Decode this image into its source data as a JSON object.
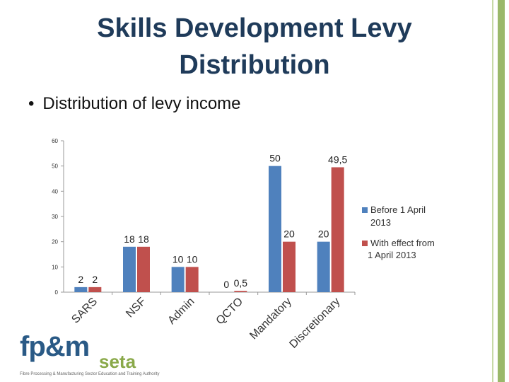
{
  "title": {
    "line1": "Skills Development Levy",
    "line2": "Distribution"
  },
  "bullet": "Distribution of levy income",
  "logo": {
    "mark": "fp&m",
    "seta": "seta",
    "tagline": "Fibre Processing & Manufacturing Sector Education and Training Authority"
  },
  "chart_data": {
    "type": "bar",
    "categories": [
      "SARS",
      "NSF",
      "Admin",
      "QCTO",
      "Mandatory",
      "Discretionary"
    ],
    "series": [
      {
        "name": "Before 1 April 2013",
        "values": [
          2,
          18,
          10,
          0,
          50,
          20
        ],
        "labels": [
          "2",
          "18",
          "10",
          "0",
          "50",
          "20"
        ],
        "color": "#4f81bd"
      },
      {
        "name": "With effect from 1 April 2013",
        "values": [
          2,
          18,
          10,
          0.5,
          20,
          49.5
        ],
        "labels": [
          "2",
          "18",
          "10",
          "0,5",
          "20",
          "49,5"
        ],
        "color": "#c0504d"
      }
    ],
    "yticks": [
      0,
      10,
      20,
      30,
      40,
      50,
      60
    ],
    "ylim": [
      0,
      60
    ],
    "legend_position": "right",
    "grid": false
  }
}
